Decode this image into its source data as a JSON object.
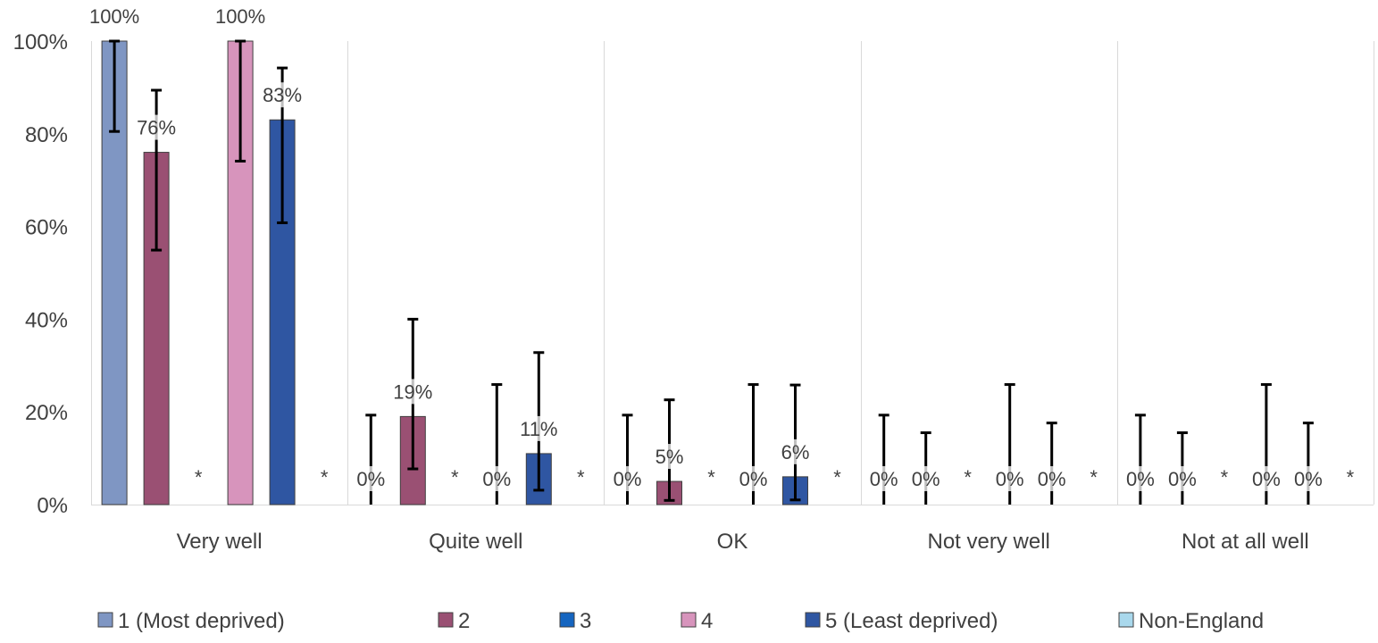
{
  "chart_data": {
    "type": "bar",
    "title": "",
    "xlabel": "",
    "ylabel": "",
    "ylim": [
      0,
      100
    ],
    "yticks": [
      "0%",
      "20%",
      "40%",
      "60%",
      "80%",
      "100%"
    ],
    "ytick_values": [
      0,
      20,
      40,
      60,
      80,
      100
    ],
    "categories": [
      "Very well",
      "Quite well",
      "OK",
      "Not very well",
      "Not at all well"
    ],
    "grid": "vertical category separators",
    "legend_position": "bottom",
    "series": [
      {
        "name": "1 (Most deprived)",
        "color": "#7F96C3",
        "values": [
          100,
          0,
          0,
          0,
          0
        ],
        "labels": [
          "100%",
          "0%",
          "0%",
          "0%",
          "0%"
        ],
        "error_low": [
          80.5,
          0,
          0,
          0,
          0
        ],
        "error_high": [
          100,
          19.3,
          19.3,
          19.3,
          19.3
        ]
      },
      {
        "name": "2",
        "color": "#9A5073",
        "values": [
          76,
          19,
          5,
          0,
          0
        ],
        "labels": [
          "76%",
          "19%",
          "5%",
          "0%",
          "0%"
        ],
        "error_low": [
          54.9,
          7.7,
          0.9,
          0,
          0
        ],
        "error_high": [
          89.4,
          40,
          22.6,
          15.5,
          15.5
        ]
      },
      {
        "name": "3",
        "color": "#1565C0",
        "values": [
          null,
          null,
          null,
          null,
          null
        ],
        "labels": [
          "*",
          "*",
          "*",
          "*",
          "*"
        ],
        "error_low": [
          null,
          null,
          null,
          null,
          null
        ],
        "error_high": [
          null,
          null,
          null,
          null,
          null
        ]
      },
      {
        "name": "4",
        "color": "#D794BC",
        "values": [
          100,
          0,
          0,
          0,
          0
        ],
        "labels": [
          "100%",
          "0%",
          "0%",
          "0%",
          "0%"
        ],
        "error_low": [
          74.1,
          0,
          0,
          0,
          0
        ],
        "error_high": [
          100,
          25.9,
          25.9,
          25.9,
          25.9
        ]
      },
      {
        "name": "5 (Least deprived)",
        "color": "#2F56A2",
        "values": [
          83,
          11,
          6,
          0,
          0
        ],
        "labels": [
          "83%",
          "11%",
          "6%",
          "0%",
          "0%"
        ],
        "error_low": [
          60.8,
          3.1,
          1,
          0,
          0
        ],
        "error_high": [
          94.2,
          32.8,
          25.8,
          17.6,
          17.6
        ]
      },
      {
        "name": "Non-England",
        "color": "#A9D8EC",
        "values": [
          null,
          null,
          null,
          null,
          null
        ],
        "labels": [
          "*",
          "*",
          "*",
          "*",
          "*"
        ],
        "error_low": [
          null,
          null,
          null,
          null,
          null
        ],
        "error_high": [
          null,
          null,
          null,
          null,
          null
        ]
      }
    ]
  }
}
